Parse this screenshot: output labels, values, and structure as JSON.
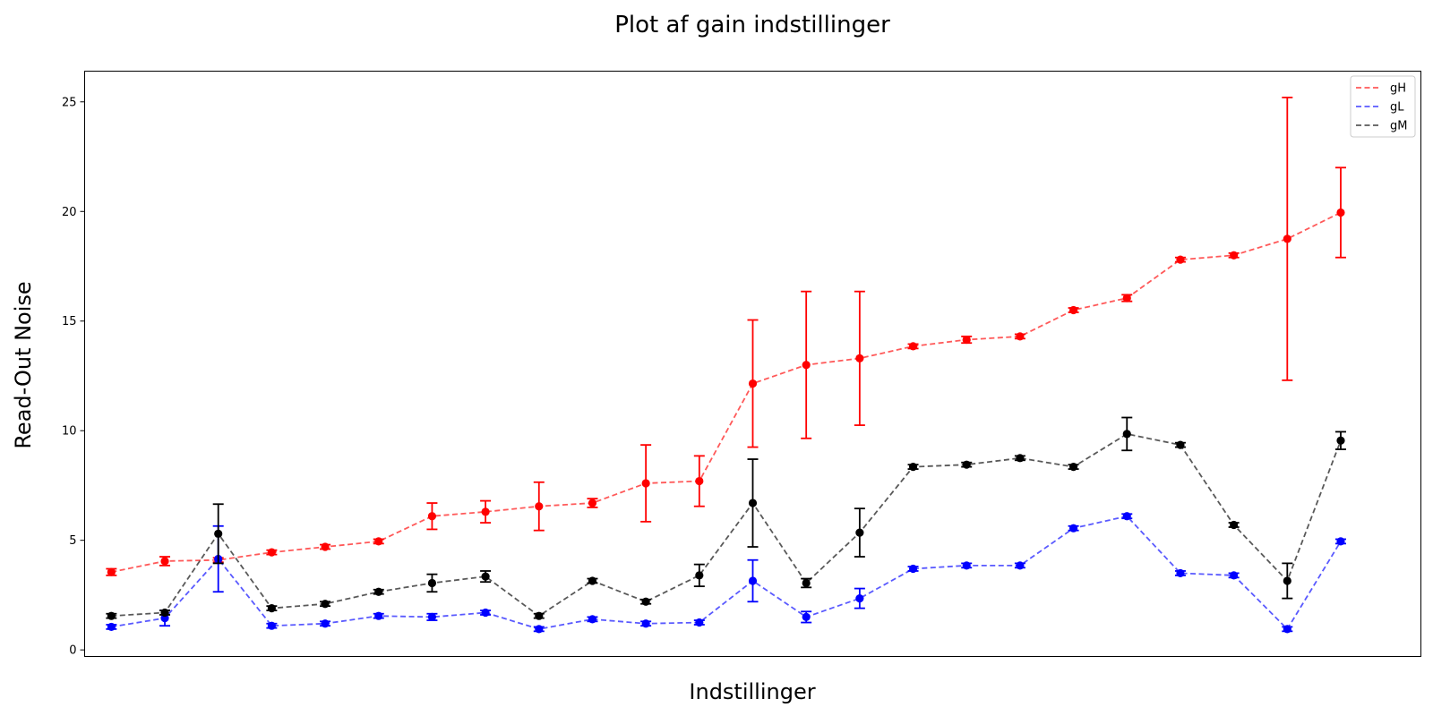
{
  "chart_data": {
    "type": "line",
    "title": "Plot af gain indstillinger",
    "xlabel": "Indstillinger",
    "ylabel": "Read-Out Noise",
    "ylim": [
      -0.3,
      26.4
    ],
    "yticks": [
      0,
      5,
      10,
      15,
      20,
      25
    ],
    "xlim": [
      -0.5,
      24.5
    ],
    "x": [
      0,
      1,
      2,
      3,
      4,
      5,
      6,
      7,
      8,
      9,
      10,
      11,
      12,
      13,
      14,
      15,
      16,
      17,
      18,
      19,
      20,
      21,
      22,
      23
    ],
    "error_bars": true,
    "legend_position": "top-right",
    "series": [
      {
        "name": "gH",
        "color": "#ff0000",
        "line_style": "dashed",
        "values": [
          3.55,
          4.05,
          4.1,
          4.45,
          4.7,
          4.95,
          6.1,
          6.3,
          6.55,
          6.7,
          7.6,
          7.7,
          12.15,
          13.0,
          13.3,
          13.85,
          14.15,
          14.3,
          15.5,
          16.05,
          17.8,
          18.0,
          18.75,
          19.95
        ],
        "errors": [
          0.15,
          0.2,
          0.1,
          0.1,
          0.1,
          0.1,
          0.6,
          0.5,
          1.1,
          0.2,
          1.75,
          1.15,
          2.9,
          3.35,
          3.05,
          0.1,
          0.15,
          0.1,
          0.1,
          0.15,
          0.1,
          0.1,
          6.45,
          2.05
        ]
      },
      {
        "name": "gL",
        "color": "#0000ff",
        "line_style": "dashed",
        "values": [
          1.05,
          1.45,
          4.15,
          1.1,
          1.2,
          1.55,
          1.5,
          1.7,
          0.95,
          1.4,
          1.2,
          1.25,
          3.15,
          1.5,
          2.35,
          3.7,
          3.85,
          3.85,
          5.55,
          6.1,
          3.5,
          3.4,
          0.95,
          4.95
        ],
        "errors": [
          0.1,
          0.35,
          1.5,
          0.1,
          0.1,
          0.1,
          0.15,
          0.1,
          0.1,
          0.1,
          0.1,
          0.1,
          0.95,
          0.25,
          0.45,
          0.1,
          0.1,
          0.1,
          0.1,
          0.1,
          0.1,
          0.1,
          0.1,
          0.1
        ]
      },
      {
        "name": "gM",
        "color": "#000000",
        "line_style": "dashed",
        "values": [
          1.55,
          1.7,
          5.3,
          1.9,
          2.1,
          2.65,
          3.05,
          3.35,
          1.55,
          3.15,
          2.2,
          3.4,
          6.7,
          3.05,
          5.35,
          8.35,
          8.45,
          8.75,
          8.35,
          9.85,
          9.35,
          5.7,
          3.15,
          9.55
        ],
        "errors": [
          0.1,
          0.1,
          1.35,
          0.1,
          0.1,
          0.1,
          0.4,
          0.25,
          0.1,
          0.1,
          0.1,
          0.5,
          2.0,
          0.2,
          1.1,
          0.1,
          0.1,
          0.1,
          0.1,
          0.75,
          0.1,
          0.1,
          0.8,
          0.4
        ]
      }
    ]
  }
}
